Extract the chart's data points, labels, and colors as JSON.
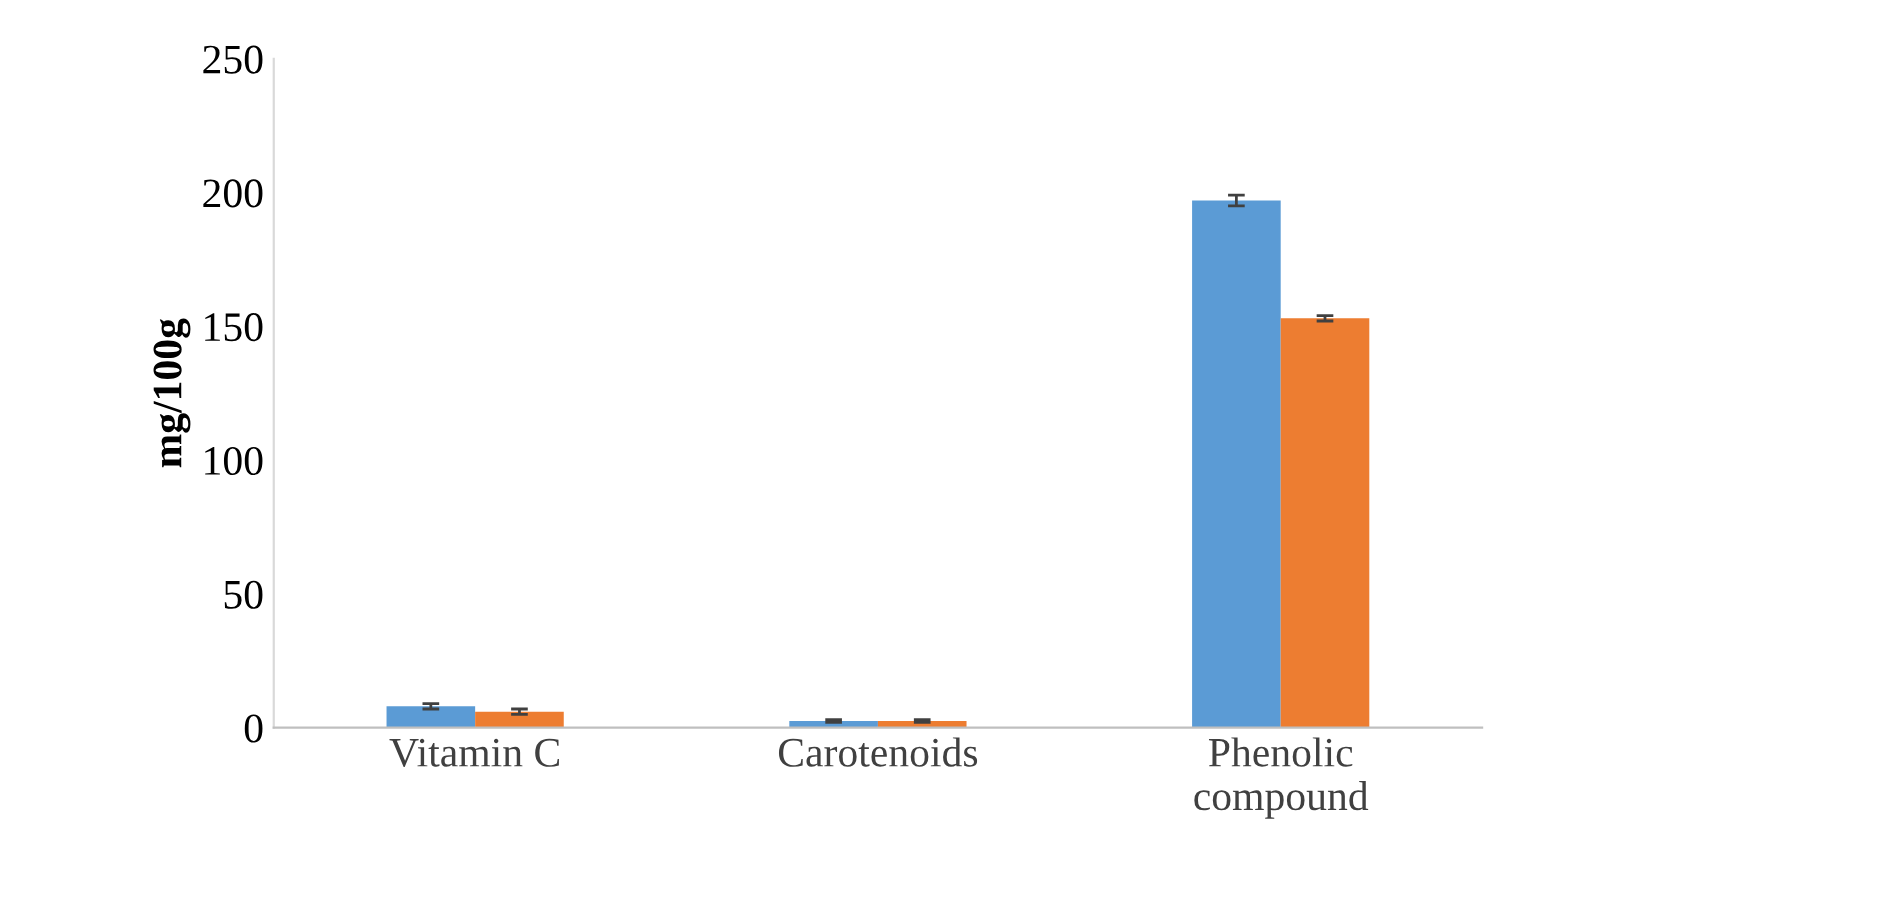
{
  "chart_data": {
    "type": "bar",
    "ylabel": "mg/100g",
    "categories": [
      "Vitamin C",
      "Carotenoids",
      "Phenolic\ncompound"
    ],
    "series": [
      {
        "color": "#5b9bd5",
        "values": [
          8,
          2.5,
          197
        ],
        "errors": [
          1,
          0.5,
          2
        ]
      },
      {
        "color": "#ed7d31",
        "values": [
          6,
          2.5,
          153
        ],
        "errors": [
          1,
          0.5,
          1
        ]
      }
    ],
    "ylim": [
      0,
      250
    ],
    "yticks": [
      0,
      50,
      100,
      150,
      200,
      250
    ],
    "grid": false
  }
}
